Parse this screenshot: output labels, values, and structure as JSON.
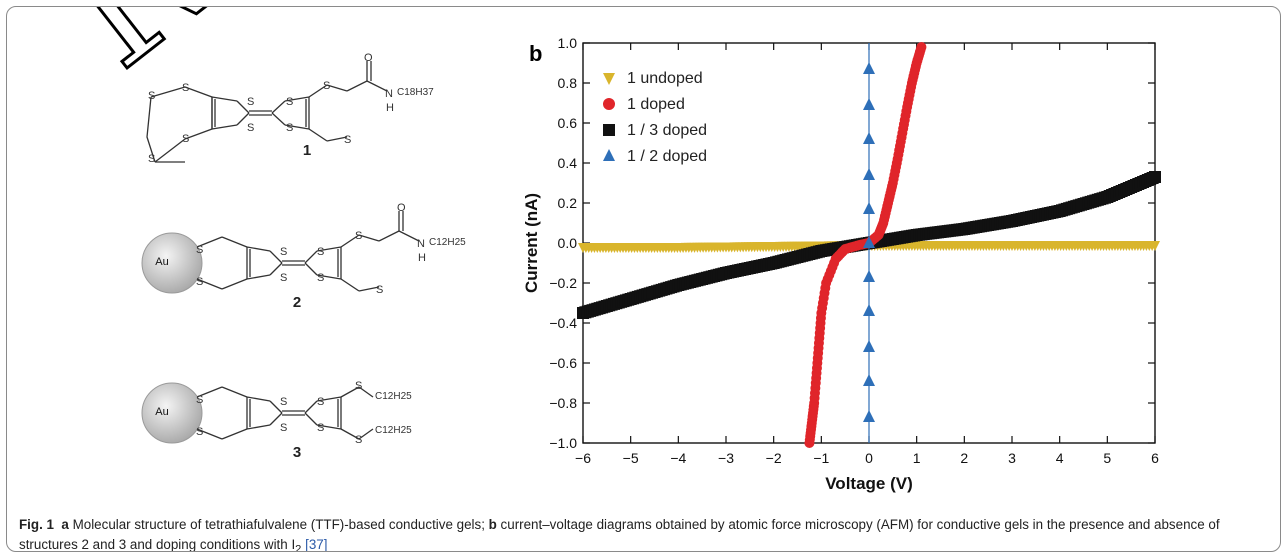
{
  "watermark": "RE",
  "panel_a": {
    "compounds": [
      {
        "label": "1",
        "chain": "C18H37"
      },
      {
        "label": "2",
        "chain": "C12H25",
        "particle": "Au"
      },
      {
        "label": "3",
        "chain": "C12H25",
        "particle": "Au"
      }
    ],
    "atoms": {
      "sulfur": "S",
      "oxygen": "O",
      "nitrogen": "N",
      "hydrogen": "H"
    }
  },
  "panel_b_letter": "b",
  "chart_data": {
    "type": "scatter",
    "xlabel": "Voltage (V)",
    "ylabel": "Current (nA)",
    "xlim": [
      -6,
      6
    ],
    "ylim": [
      -1.0,
      1.0
    ],
    "xticks": [
      "−6",
      "−5",
      "−4",
      "−3",
      "−2",
      "−1",
      "0",
      "1",
      "2",
      "3",
      "4",
      "5",
      "6"
    ],
    "yticks": [
      "−1.0",
      "−0.8",
      "−0.6",
      "−0.4",
      "−0.2",
      "0.0",
      "0.2",
      "0.4",
      "0.6",
      "0.8",
      "1.0"
    ],
    "legend_position": "top-left",
    "series": [
      {
        "name": "1  undoped",
        "marker": "triangle-down",
        "color": "#d9b52c",
        "x": [
          -6,
          -4,
          -2,
          0,
          2,
          4,
          6
        ],
        "y": [
          -0.02,
          -0.02,
          -0.015,
          -0.01,
          -0.01,
          -0.01,
          -0.01
        ]
      },
      {
        "name": "1  doped",
        "marker": "circle",
        "color": "#e0252a",
        "x": [
          -1.25,
          -1.2,
          -1.15,
          -1.1,
          -1.05,
          -1.0,
          -0.9,
          -0.7,
          -0.5,
          -0.2,
          0.0,
          0.2,
          0.3,
          0.4,
          0.5,
          0.6,
          0.7,
          0.8,
          0.9,
          1.0,
          1.1
        ],
        "y": [
          -1.0,
          -0.9,
          -0.8,
          -0.65,
          -0.5,
          -0.35,
          -0.2,
          -0.08,
          -0.03,
          -0.01,
          0.0,
          0.04,
          0.1,
          0.2,
          0.3,
          0.42,
          0.55,
          0.68,
          0.8,
          0.9,
          0.98
        ]
      },
      {
        "name": "1 / 3 doped",
        "marker": "square",
        "color": "#111111",
        "x": [
          -6,
          -5,
          -4,
          -3,
          -2,
          -1,
          0,
          1,
          2,
          3,
          4,
          5,
          6
        ],
        "y": [
          -0.35,
          -0.28,
          -0.21,
          -0.15,
          -0.1,
          -0.04,
          0.0,
          0.04,
          0.07,
          0.11,
          0.16,
          0.23,
          0.33
        ]
      },
      {
        "name": "1 /  2 doped",
        "marker": "triangle-up",
        "color": "#2e6fb8",
        "x": [
          0,
          0,
          0,
          0,
          0,
          0,
          0,
          0,
          0,
          0,
          0
        ],
        "y": [
          -0.87,
          -0.69,
          -0.52,
          -0.34,
          -0.17,
          0.0,
          0.17,
          0.34,
          0.52,
          0.69,
          0.87
        ]
      }
    ]
  },
  "caption": {
    "fig_label": "Fig. 1",
    "a_letter": "a",
    "part_a": " Molecular structure of tetrathiafulvalene (TTF)-based conductive gels; ",
    "b_letter": "b",
    "part_b": " current–voltage diagrams obtained by atomic force microscopy (AFM) for conductive gels in the presence and absence of structures 2 and 3 and doping conditions with I",
    "subscript": "2",
    "ref": "[37]"
  }
}
